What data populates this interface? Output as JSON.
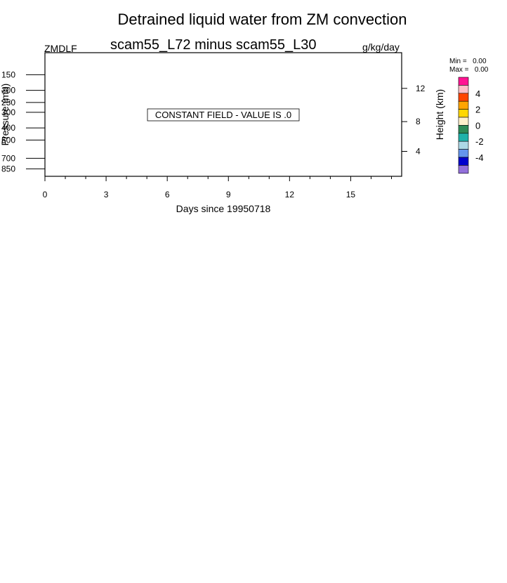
{
  "title": "Detrained liquid water from ZM convection",
  "subtitle": "scam55_L72 minus scam55_L30",
  "variable": "ZMDLF",
  "units": "g/kg/day",
  "stats": {
    "min_label": "Min =",
    "min_value": "0.00",
    "max_label": "Max =",
    "max_value": "0.00"
  },
  "message": "CONSTANT FIELD - VALUE IS .0",
  "chart_data": {
    "type": "heatmap",
    "title": "Detrained liquid water from ZM convection",
    "subtitle": "scam55_L72 minus scam55_L30",
    "xlabel": "Days since 19950718",
    "ylabel": "Pressure (mb)",
    "y2label": "Height (km)",
    "xlim": [
      0,
      17.5
    ],
    "x_ticks": [
      0,
      3,
      6,
      9,
      12,
      15
    ],
    "x_minor_ticks": [
      1,
      2,
      4,
      5,
      7,
      8,
      10,
      11,
      13,
      14,
      16,
      17
    ],
    "ylim": [
      975,
      100
    ],
    "y_scale": "log",
    "y_ticks": [
      150,
      200,
      250,
      300,
      400,
      500,
      700,
      850
    ],
    "y2_ticks": [
      12,
      8,
      4
    ],
    "y2_pressure": [
      193,
      356,
      616
    ],
    "value": 0.0,
    "colorbar": {
      "labels": [
        "4",
        "2",
        "0",
        "-2",
        "-4"
      ],
      "colors": [
        "#ff1493",
        "#ffbfc9",
        "#ff4500",
        "#ffa500",
        "#ffd700",
        "#fff0cc",
        "#2e8b57",
        "#20b2aa",
        "#add8e6",
        "#6495ed",
        "#0000cd",
        "#9370db"
      ]
    }
  }
}
